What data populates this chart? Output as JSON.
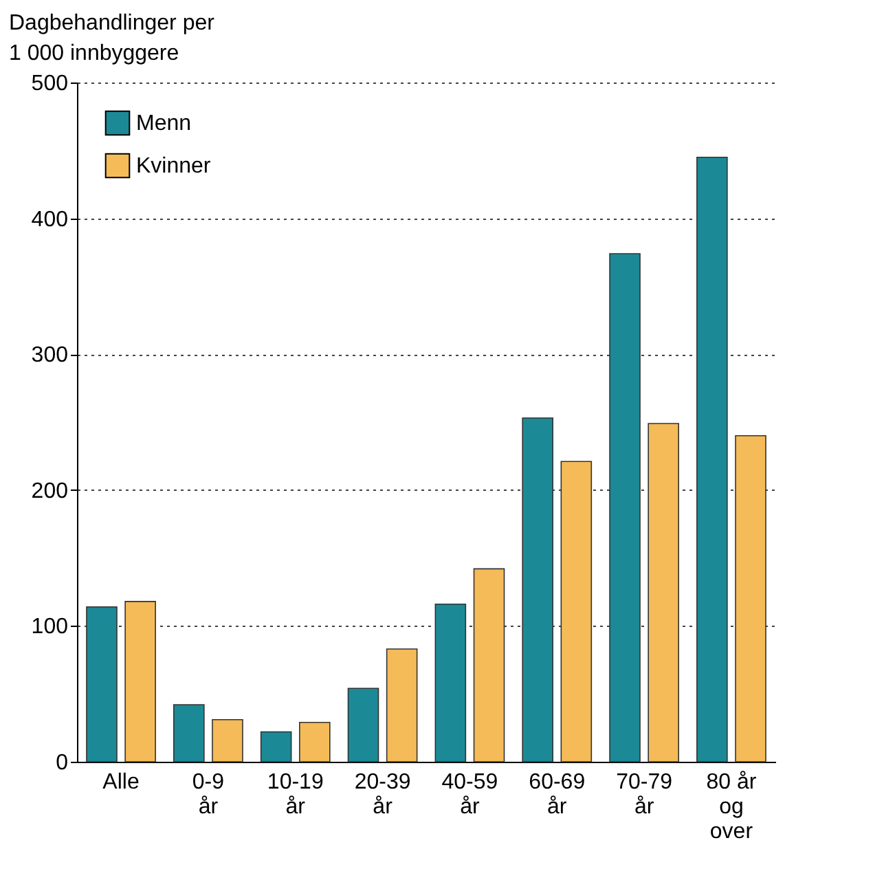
{
  "chart_data": {
    "type": "bar",
    "ylabel": "Dagbehandlinger per\n1 000 innbyggere",
    "categories": [
      "Alle",
      "0-9\når",
      "10-19\når",
      "20-39\når",
      "40-59\når",
      "60-69\når",
      "70-79\når",
      "80 år\nog\nover"
    ],
    "series": [
      {
        "name": "Menn",
        "color": "#1b8a96",
        "values": [
          114,
          42,
          22,
          54,
          116,
          253,
          374,
          445
        ]
      },
      {
        "name": "Kvinner",
        "color": "#f4bb58",
        "values": [
          118,
          31,
          29,
          83,
          142,
          221,
          249,
          240
        ]
      }
    ],
    "ylim": [
      0,
      500
    ],
    "yticks": [
      0,
      100,
      200,
      300,
      400,
      500
    ],
    "grid": "y",
    "legend": "top left"
  }
}
